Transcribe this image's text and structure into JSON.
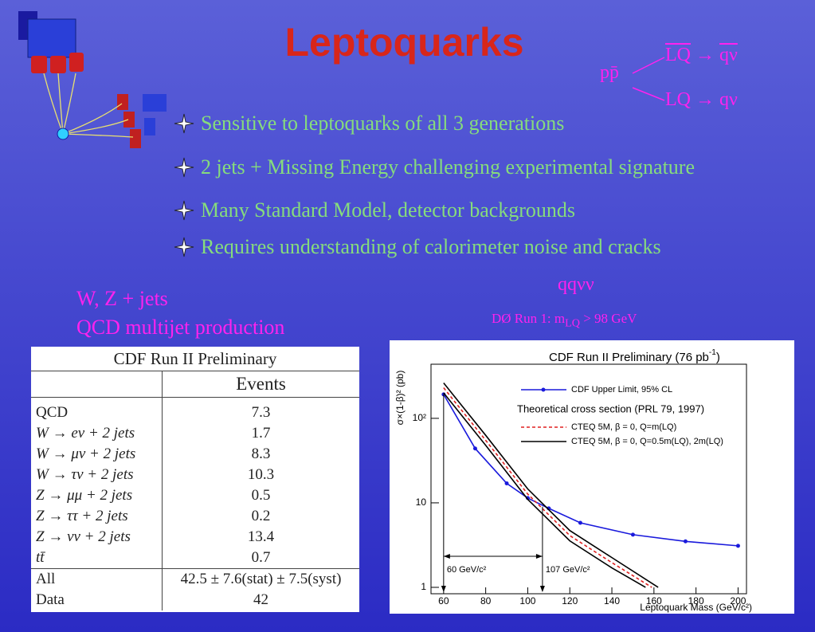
{
  "title": "Leptoquarks",
  "decay": {
    "initial": "pp̄",
    "upper": {
      "lq": "LQ",
      "products": "qν"
    },
    "lower": {
      "lq": "LQ",
      "products": "qν"
    }
  },
  "bullets": [
    "Sensitive to leptoquarks of all 3 generations",
    "2 jets + Missing Energy challenging experimental signature",
    "Many Standard Model, detector backgrounds",
    "Requires understanding of calorimeter noise and cracks"
  ],
  "labels": {
    "backgrounds": [
      "W, Z + jets",
      "QCD multijet production"
    ],
    "channel": "qqνν",
    "d0": {
      "text": "DØ Run 1:  m",
      "sub": "LQ",
      "end": " > 98 GeV"
    }
  },
  "table": {
    "title": "CDF Run II Preliminary",
    "header": "Events",
    "rows": [
      [
        "QCD",
        7.3
      ],
      [
        "W → eν + 2 jets",
        1.7
      ],
      [
        "W → μν + 2 jets",
        8.3
      ],
      [
        "W → τν + 2 jets",
        10.3
      ],
      [
        "Z → μμ + 2 jets",
        0.5
      ],
      [
        "Z → ττ + 2 jets",
        0.2
      ],
      [
        "Z → νν + 2 jets",
        13.4
      ],
      [
        "tt̄",
        0.7
      ]
    ],
    "totals": [
      [
        "All",
        "42.5 ± 7.6(stat) ± 7.5(syst)"
      ],
      [
        "Data",
        42
      ]
    ]
  },
  "chart_data": {
    "type": "line",
    "title": {
      "text": "CDF Run II Preliminary (76 pb",
      "sup": "-1",
      "end": ")"
    },
    "x_label": "Leptoquark Mass (GeV/c²)",
    "y_label": "σ×(1-β)² (pb)",
    "xlim": [
      54,
      204
    ],
    "xticks": [
      60,
      80,
      100,
      120,
      140,
      160,
      180,
      200
    ],
    "ylim": [
      0.84,
      437
    ],
    "log_y": true,
    "yticks": [
      1,
      10,
      {
        "value": 100,
        "label": "10²"
      }
    ],
    "legend_header": "Theoretical cross section (PRL 79, 1997)",
    "series": [
      {
        "name": "CDF Upper Limit, 95% CL",
        "color": "#1a1adc",
        "markers": true,
        "x": [
          60,
          75,
          90,
          100,
          110,
          125,
          150,
          175,
          200
        ],
        "values": [
          192,
          44,
          17,
          11.4,
          8.6,
          5.8,
          4.2,
          3.5,
          3.1
        ]
      },
      {
        "name": "CTEQ 5M,  β = 0, Q=m(LQ)",
        "color": "#e02020",
        "dashed": true,
        "x": [
          60,
          80,
          100,
          120,
          140,
          159
        ],
        "values": [
          230,
          55,
          12.7,
          4.1,
          1.96,
          1
        ]
      },
      {
        "name": "CTEQ 5M,  β = 0, Q=0.5m(LQ), 2m(LQ)",
        "color": "#000000",
        "x": [
          60,
          80,
          100,
          120,
          140,
          162
        ],
        "values": [
          262,
          63,
          14.6,
          4.7,
          2.25,
          1
        ],
        "x2": [
          60,
          80,
          100,
          120,
          140,
          156
        ],
        "values2": [
          200,
          48,
          11,
          3.55,
          1.7,
          1
        ]
      }
    ],
    "annotations": [
      {
        "x": 60,
        "y": 192,
        "label": "60 GeV/c²"
      },
      {
        "x": 107,
        "y": 9,
        "label": "107 GeV/c²"
      }
    ]
  }
}
